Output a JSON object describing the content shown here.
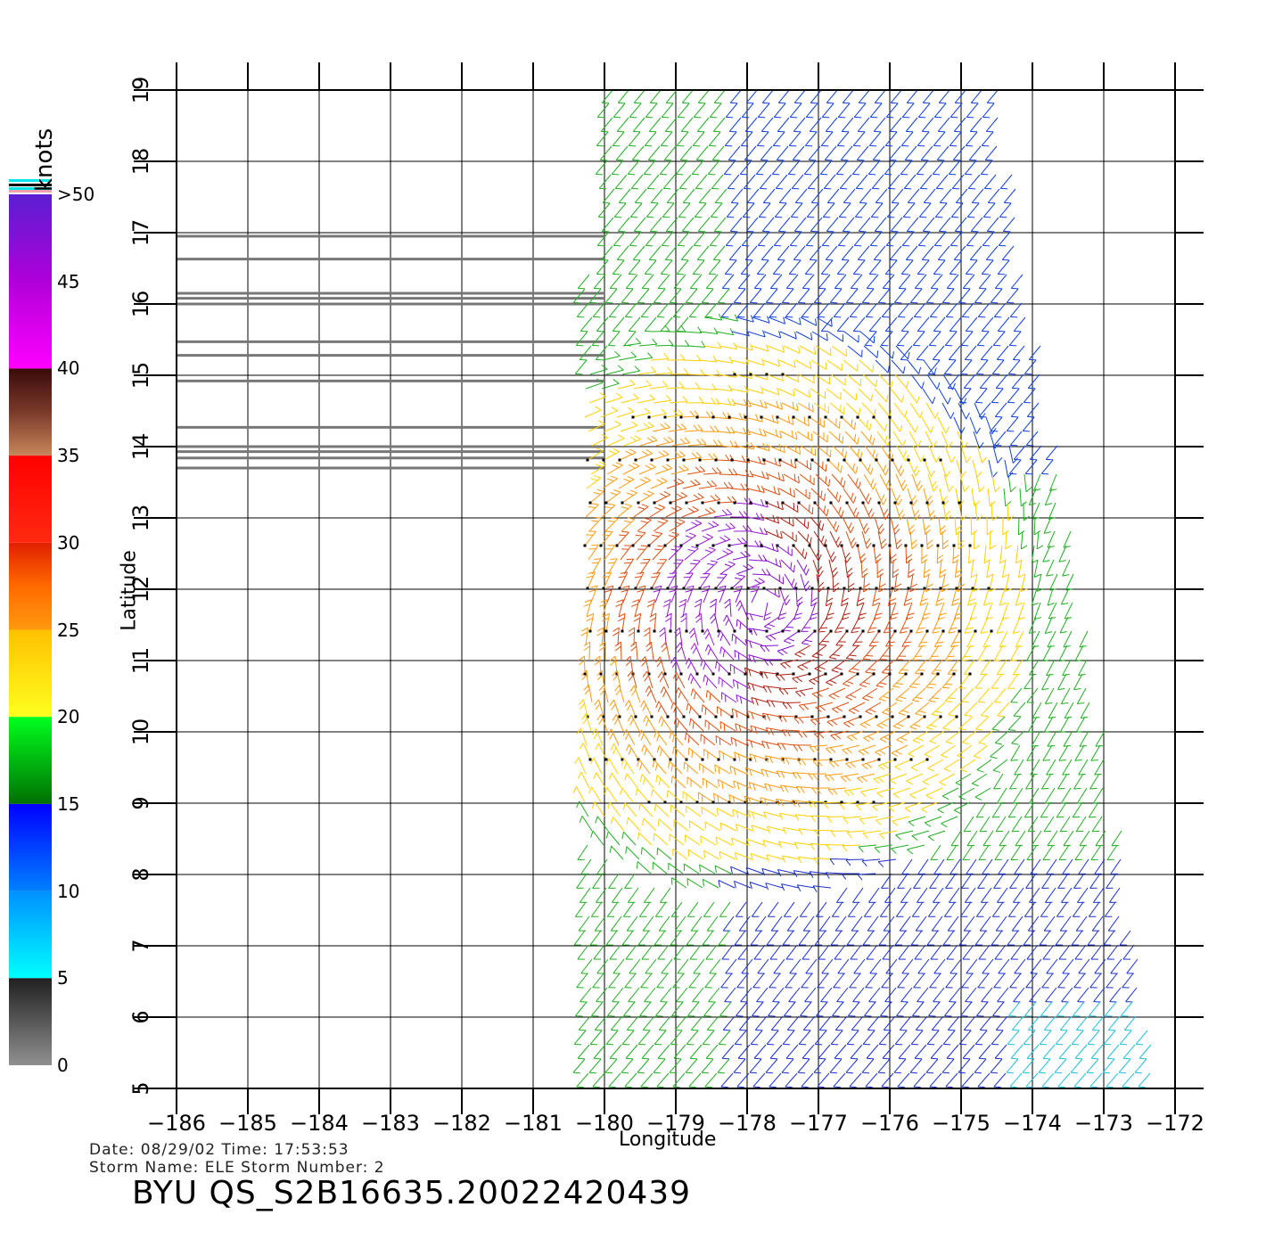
{
  "colorbar": {
    "unit": "knots",
    "labels": [
      ">50",
      "45",
      "40",
      "35",
      "30",
      "25",
      "20",
      "15",
      "10",
      "5",
      "0"
    ],
    "segments": [
      {
        "from": 50,
        "to": 40,
        "colors": [
          "#5a1fd0",
          "#b000d8",
          "#ff00ff"
        ]
      },
      {
        "from": 40,
        "to": 35,
        "colors": [
          "#3a0a0a",
          "#7a3a2a",
          "#c8865a"
        ]
      },
      {
        "from": 35,
        "to": 30,
        "colors": [
          "#ff0000",
          "#ff2a10"
        ]
      },
      {
        "from": 30,
        "to": 25,
        "colors": [
          "#e02000",
          "#ff6a00",
          "#ff9a10"
        ]
      },
      {
        "from": 25,
        "to": 20,
        "colors": [
          "#ffc000",
          "#ffff20"
        ]
      },
      {
        "from": 20,
        "to": 15,
        "colors": [
          "#00ff20",
          "#007000"
        ]
      },
      {
        "from": 15,
        "to": 10,
        "colors": [
          "#0000ff",
          "#0080ff"
        ]
      },
      {
        "from": 10,
        "to": 5,
        "colors": [
          "#0090ff",
          "#00ffff"
        ]
      },
      {
        "from": 5,
        "to": 0,
        "colors": [
          "#202020",
          "#909090"
        ]
      }
    ]
  },
  "map": {
    "lon_ticks": [
      "−186",
      "−185",
      "−184",
      "−183",
      "−182",
      "−181",
      "−180",
      "−179",
      "−178",
      "−177",
      "−176",
      "−175",
      "−174",
      "−173",
      "−172"
    ],
    "lat_ticks": [
      "5",
      "6",
      "7",
      "8",
      "9",
      "10",
      "11",
      "12",
      "13",
      "14",
      "15",
      "16",
      "17",
      "18",
      "19"
    ],
    "lon_range": [
      -186,
      -172
    ],
    "lat_range": [
      5,
      19
    ],
    "xlabel": "Longitude",
    "ylabel": "Latitude",
    "gray_track_lats": [
      16.95,
      16.63,
      16.15,
      16.08,
      16.0,
      15.47,
      15.28,
      14.92,
      14.27,
      14.0,
      13.93,
      13.84,
      13.7
    ],
    "gray_track_lon_end": -180.0,
    "storm_center": {
      "lon": -177.8,
      "lat": 11.8
    }
  },
  "metadata": {
    "date_line": "Date: 08/29/02   Time: 17:53:53",
    "storm_line": "Storm Name: ELE   Storm Number: 2"
  },
  "title": "BYU QS_S2B16635.20022420439"
}
